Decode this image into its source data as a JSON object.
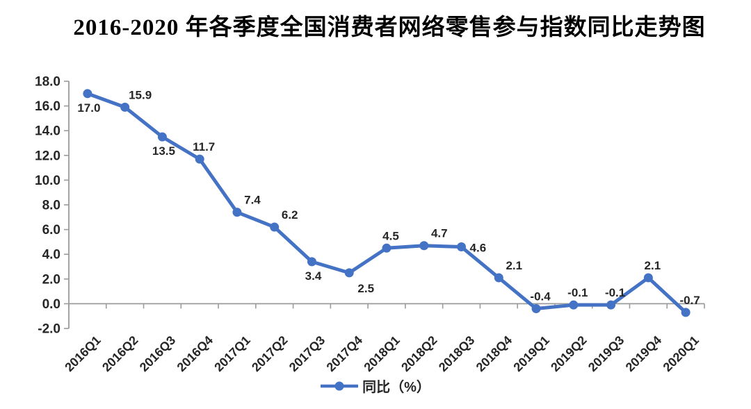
{
  "page": {
    "background": "#ffffff"
  },
  "chart_data": {
    "type": "line",
    "title": "2016-2020 年各季度全国消费者网络零售参与指数同比走势图",
    "categories": [
      "2016Q1",
      "2016Q2",
      "2016Q3",
      "2016Q4",
      "2017Q1",
      "2017Q2",
      "2017Q3",
      "2017Q4",
      "2018Q1",
      "2018Q2",
      "2018Q3",
      "2018Q4",
      "2019Q1",
      "2019Q2",
      "2019Q3",
      "2019Q4",
      "2020Q1"
    ],
    "series": [
      {
        "name": "同比（%）",
        "values": [
          17.0,
          15.9,
          13.5,
          11.7,
          7.4,
          6.2,
          3.4,
          2.5,
          4.5,
          4.7,
          4.6,
          2.1,
          -0.4,
          -0.1,
          -0.1,
          2.1,
          -0.7
        ],
        "color": "#4472C4"
      }
    ],
    "xlabel": "",
    "ylabel": "",
    "ylim": [
      -2,
      18
    ],
    "ytick_step": 2,
    "ytick_decimals": 1,
    "data_label_decimals": 1,
    "grid": false,
    "legend_position": "bottom",
    "x_label_rotation": -45,
    "label_positions": [
      "below",
      "above-right",
      "below",
      "above",
      "above-right",
      "above-right",
      "below",
      "below-right",
      "above",
      "above-right",
      "right",
      "above-right",
      "above",
      "above",
      "above",
      "above",
      "above"
    ],
    "colors": {
      "axis": "#9b9b9b",
      "tick_label": "#262626",
      "data_label": "#262626",
      "title": "#000000"
    }
  }
}
